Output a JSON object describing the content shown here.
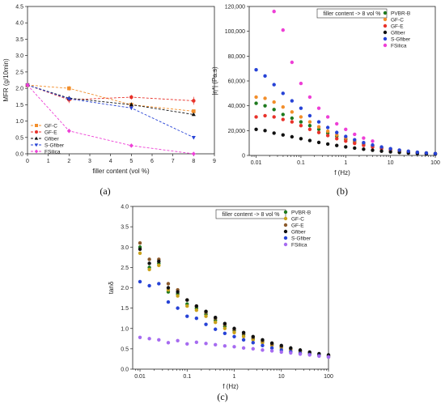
{
  "chart_data": [
    {
      "id": "a",
      "type": "line",
      "caption": "(a)",
      "xlabel": "filler content (vol %)",
      "ylabel": "MFR (g/10min)",
      "xlim": [
        0,
        9
      ],
      "ylim": [
        0,
        4.5
      ],
      "xticks": [
        "0",
        "1",
        "2",
        "3",
        "4",
        "5",
        "6",
        "7",
        "8",
        "9"
      ],
      "yticks": [
        "0.0",
        "0.5",
        "1.0",
        "1.5",
        "2.0",
        "2.5",
        "3.0",
        "3.5",
        "4.0",
        "4.5"
      ],
      "legend_position": "bottom-left",
      "series": [
        {
          "name": "GF-C",
          "color": "#f28e2b",
          "marker": "square",
          "x": [
            0,
            2,
            5,
            8
          ],
          "y": [
            2.1,
            2.0,
            1.5,
            1.3
          ],
          "err": [
            0.05,
            0.07,
            0.06,
            0.05
          ]
        },
        {
          "name": "GF-E",
          "color": "#e8322a",
          "marker": "circle",
          "x": [
            0,
            2,
            5,
            8
          ],
          "y": [
            2.1,
            1.65,
            1.73,
            1.62
          ],
          "err": [
            0.05,
            0.1,
            0.07,
            0.12
          ]
        },
        {
          "name": "Gfiber",
          "color": "#111111",
          "marker": "triangle-up",
          "x": [
            0,
            2,
            5,
            8
          ],
          "y": [
            2.1,
            1.7,
            1.5,
            1.2
          ],
          "err": [
            0.05,
            0.06,
            0.07,
            0.04
          ]
        },
        {
          "name": "S-Gfiber",
          "color": "#2743d6",
          "marker": "triangle-down",
          "x": [
            0,
            2,
            5,
            8
          ],
          "y": [
            2.1,
            1.68,
            1.4,
            0.5
          ],
          "err": [
            0.05,
            0.05,
            0.06,
            0.05
          ]
        },
        {
          "name": "FSilica",
          "color": "#ee3fd6",
          "marker": "diamond",
          "x": [
            0,
            2,
            5,
            8
          ],
          "y": [
            2.1,
            0.7,
            0.25,
            0.0
          ],
          "err": [
            0.05,
            0.04,
            0.05,
            0.02
          ]
        }
      ]
    },
    {
      "id": "b",
      "type": "scatter",
      "caption": "(b)",
      "xlabel": "f (Hz)",
      "ylabel": "|η*| (Pa.s)",
      "xscale": "log",
      "xlim": [
        0.007,
        100
      ],
      "ylim": [
        0,
        120000
      ],
      "xticks": [
        0.01,
        0.1,
        1,
        10,
        100
      ],
      "xtick_labels": [
        "0.01",
        "0.1",
        "1",
        "10",
        "100"
      ],
      "yticks": [
        0,
        20000,
        40000,
        60000,
        80000,
        100000,
        120000
      ],
      "ytick_labels": [
        "0",
        "20,000",
        "40,000",
        "60,000",
        "80,000",
        "100,000",
        "120,000"
      ],
      "annotation": "filler content -> 8 vol %",
      "legend_position": "top-right",
      "x": [
        0.01,
        0.0158,
        0.0251,
        0.0398,
        0.0631,
        0.1,
        0.158,
        0.251,
        0.398,
        0.631,
        1,
        1.58,
        2.51,
        3.98,
        6.31,
        10,
        15.8,
        25.1,
        39.8,
        63.1,
        100
      ],
      "series": [
        {
          "name": "PVBR-B",
          "color": "#1f7a1f",
          "y": [
            42000,
            40000,
            37000,
            33000,
            30000,
            27000,
            24000,
            21000,
            18000,
            15500,
            13000,
            11000,
            9200,
            7600,
            6200,
            5000,
            4000,
            3200,
            2500,
            1900,
            1500
          ]
        },
        {
          "name": "GF-C",
          "color": "#f28e2b",
          "y": [
            47000,
            46000,
            43000,
            39000,
            35000,
            31000,
            27000,
            23000,
            19500,
            16500,
            14000,
            11800,
            9800,
            8000,
            6500,
            5200,
            4100,
            3200,
            2500,
            1900,
            1500
          ]
        },
        {
          "name": "GF-E",
          "color": "#e8322a",
          "y": [
            31000,
            32000,
            31000,
            29000,
            27000,
            24000,
            21000,
            18500,
            16000,
            13500,
            11500,
            9700,
            8100,
            6700,
            5500,
            4400,
            3500,
            2800,
            2200,
            1700,
            1300
          ]
        },
        {
          "name": "Gfiber",
          "color": "#111111",
          "y": [
            21000,
            20000,
            18000,
            16500,
            15000,
            13500,
            12000,
            10500,
            9200,
            8000,
            6900,
            5900,
            5000,
            4200,
            3500,
            2900,
            2400,
            1900,
            1500,
            1200,
            1000
          ]
        },
        {
          "name": "S-Gfiber",
          "color": "#2743d6",
          "y": [
            69000,
            64000,
            57000,
            50000,
            44000,
            38000,
            32000,
            27000,
            22500,
            18500,
            15300,
            12600,
            10300,
            8400,
            6800,
            5400,
            4300,
            3400,
            2600,
            2000,
            1500
          ]
        },
        {
          "name": "FSilica",
          "color": "#ee3fd6",
          "x": [
            0.0251,
            0.0398,
            0.0631,
            0.1,
            0.158,
            0.251,
            0.398,
            0.631,
            1,
            1.58,
            2.51,
            3.98
          ],
          "y": [
            116000,
            101000,
            75000,
            58000,
            47000,
            38000,
            31000,
            25500,
            21000,
            17000,
            14000,
            11500
          ]
        }
      ]
    },
    {
      "id": "c",
      "type": "scatter",
      "caption": "(c)",
      "xlabel": "f (Hz)",
      "ylabel": "tanδ",
      "xscale": "log",
      "xlim": [
        0.007,
        100
      ],
      "ylim": [
        0,
        4.0
      ],
      "xticks": [
        0.01,
        0.1,
        1,
        10,
        100
      ],
      "xtick_labels": [
        "0.01",
        "0.1",
        "1",
        "10",
        "100"
      ],
      "yticks": [
        0,
        0.5,
        1.0,
        1.5,
        2.0,
        2.5,
        3.0,
        3.5,
        4.0
      ],
      "ytick_labels": [
        "0.0",
        "0.5",
        "1.0",
        "1.5",
        "2.0",
        "2.5",
        "3.0",
        "3.5",
        "4.0"
      ],
      "annotation": "filler content -> 8 vol %",
      "legend_position": "top-right",
      "x": [
        0.01,
        0.0158,
        0.0251,
        0.0398,
        0.0631,
        0.1,
        0.158,
        0.251,
        0.398,
        0.631,
        1,
        1.58,
        2.51,
        3.98,
        6.31,
        10,
        15.8,
        25.1,
        39.8,
        63.1,
        100
      ],
      "series": [
        {
          "name": "PVBR-B",
          "color": "#1f7a1f",
          "y": [
            3.0,
            2.5,
            2.6,
            1.9,
            1.85,
            1.6,
            1.5,
            1.35,
            1.2,
            1.05,
            0.95,
            0.85,
            0.75,
            0.68,
            0.6,
            0.55,
            0.5,
            0.45,
            0.4,
            0.36,
            0.33
          ]
        },
        {
          "name": "GF-C",
          "color": "#c9a21a",
          "y": [
            2.85,
            2.45,
            2.55,
            1.95,
            1.8,
            1.55,
            1.45,
            1.3,
            1.15,
            1.0,
            0.9,
            0.8,
            0.72,
            0.65,
            0.58,
            0.52,
            0.47,
            0.42,
            0.38,
            0.34,
            0.3
          ]
        },
        {
          "name": "GF-E",
          "color": "#8b5a2b",
          "y": [
            3.1,
            2.7,
            2.7,
            2.1,
            1.95,
            1.7,
            1.55,
            1.4,
            1.25,
            1.1,
            0.98,
            0.88,
            0.78,
            0.7,
            0.62,
            0.56,
            0.5,
            0.45,
            0.4,
            0.36,
            0.33
          ]
        },
        {
          "name": "Gfiber",
          "color": "#111111",
          "y": [
            2.95,
            2.6,
            2.65,
            2.0,
            1.9,
            1.7,
            1.55,
            1.42,
            1.27,
            1.12,
            1.0,
            0.9,
            0.8,
            0.72,
            0.64,
            0.58,
            0.52,
            0.47,
            0.42,
            0.38,
            0.35
          ]
        },
        {
          "name": "S-Gfiber",
          "color": "#2743d6",
          "y": [
            2.15,
            2.05,
            2.1,
            1.65,
            1.5,
            1.3,
            1.25,
            1.1,
            0.98,
            0.88,
            0.8,
            0.72,
            0.65,
            0.58,
            0.52,
            0.47,
            0.43,
            0.39,
            0.36,
            0.33,
            0.3
          ]
        },
        {
          "name": "FSilica",
          "color": "#a66bf0",
          "y": [
            0.78,
            0.75,
            0.72,
            0.65,
            0.7,
            0.62,
            0.66,
            0.63,
            0.6,
            0.57,
            0.55,
            0.52,
            0.5,
            0.47,
            0.45,
            0.42,
            0.4,
            0.37,
            0.35,
            0.32,
            0.3
          ]
        }
      ]
    }
  ]
}
